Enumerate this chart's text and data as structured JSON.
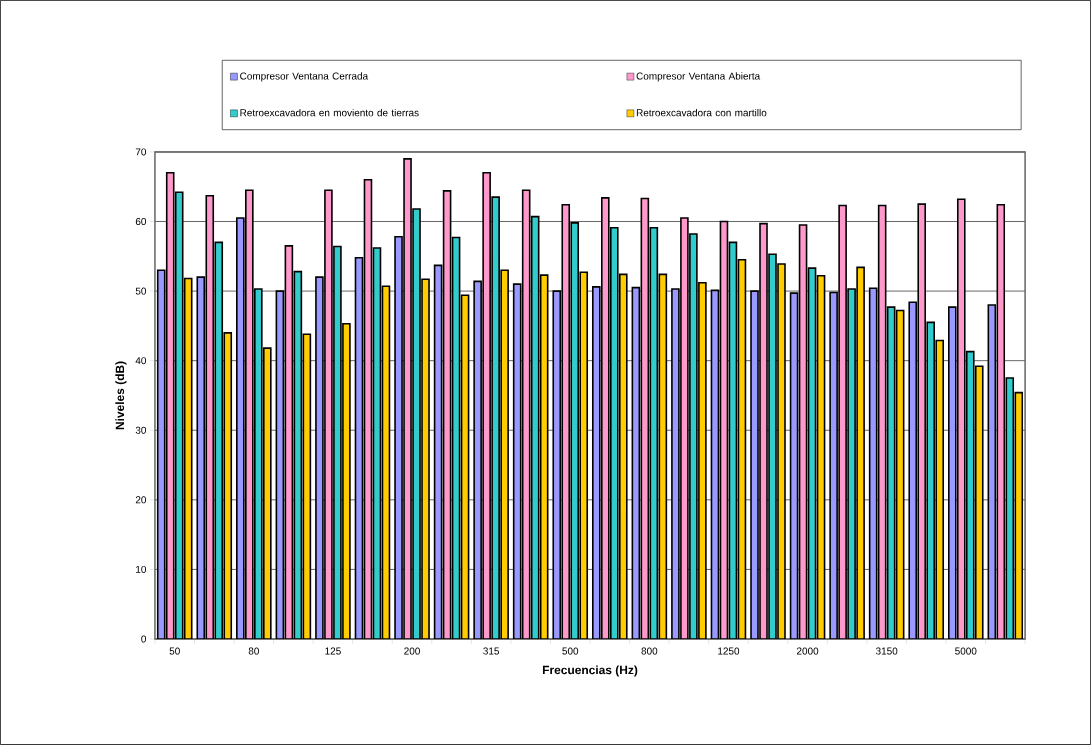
{
  "chart_data": {
    "type": "bar",
    "xlabel": "Frecuencias (Hz)",
    "ylabel": "Niveles (dB)",
    "categories": [
      "50",
      null,
      "80",
      null,
      "125",
      null,
      "200",
      null,
      "315",
      null,
      "500",
      null,
      "800",
      null,
      "1250",
      null,
      "2000",
      null,
      "3150",
      null,
      "5000",
      null
    ],
    "series": [
      {
        "name": "Compresor Ventana Cerrada",
        "color": "#9999ff",
        "values": [
          53,
          52,
          60.5,
          50,
          52,
          54.8,
          57.8,
          53.7,
          51.4,
          51,
          50,
          50.6,
          50.5,
          50.3,
          50.1,
          50,
          49.7,
          49.8,
          50.4,
          48.4,
          47.7,
          48
        ]
      },
      {
        "name": "Compresor Ventana Abierta",
        "color": "#ff99cc",
        "values": [
          67,
          63.7,
          64.5,
          56.5,
          64.5,
          66,
          69,
          64.4,
          67,
          64.5,
          62.4,
          63.4,
          63.3,
          60.5,
          60,
          59.7,
          59.5,
          62.3,
          62.3,
          62.5,
          63.2,
          62.4
        ]
      },
      {
        "name": "Retroexcavadora en moviento de tierras",
        "color": "#33cccc",
        "values": [
          64.2,
          57,
          50.3,
          52.8,
          56.4,
          56.2,
          61.8,
          57.7,
          63.5,
          60.7,
          59.8,
          59.1,
          59.1,
          58.2,
          57,
          55.3,
          53.3,
          50.3,
          47.7,
          45.5,
          41.3,
          37.5
        ]
      },
      {
        "name": "Retroexcavadora con martillo",
        "color": "#ffcc00",
        "values": [
          51.8,
          44,
          41.8,
          43.8,
          45.3,
          50.7,
          51.7,
          49.4,
          53,
          52.3,
          52.7,
          52.4,
          52.4,
          51.2,
          54.5,
          53.9,
          52.2,
          53.4,
          47.2,
          42.9,
          39.2,
          35.4
        ]
      }
    ],
    "ylim": [
      0,
      70
    ],
    "yticks": [
      0,
      10,
      20,
      30,
      40,
      50,
      60,
      70
    ],
    "grid": "y",
    "legend": "top"
  }
}
